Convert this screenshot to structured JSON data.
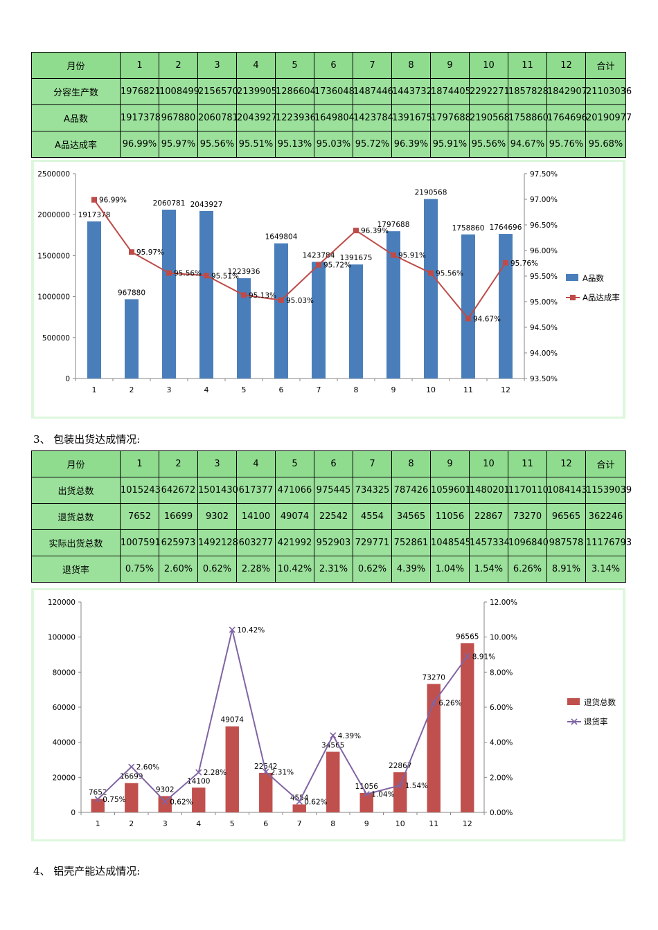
{
  "table1": {
    "header": [
      "月份",
      "1",
      "2",
      "3",
      "4",
      "5",
      "6",
      "7",
      "8",
      "9",
      "10",
      "11",
      "12",
      "合计"
    ],
    "rows": [
      [
        "分容生产数",
        "1976821",
        "1008499",
        "2156570",
        "2139905",
        "1286604",
        "1736048",
        "1487446",
        "1443732",
        "1874405",
        "2292271",
        "1857828",
        "1842907",
        "21103036"
      ],
      [
        "A品数",
        "1917378",
        "967880",
        "2060781",
        "2043927",
        "1223936",
        "1649804",
        "1423784",
        "1391675",
        "1797688",
        "2190568",
        "1758860",
        "1764696",
        "20190977"
      ],
      [
        "A品达成率",
        "96.99%",
        "95.97%",
        "95.56%",
        "95.51%",
        "95.13%",
        "95.03%",
        "95.72%",
        "96.39%",
        "95.91%",
        "95.56%",
        "94.67%",
        "95.76%",
        "95.68%"
      ]
    ]
  },
  "section3": "3、 包装出货达成情况:",
  "table2": {
    "header": [
      "月份",
      "1",
      "2",
      "3",
      "4",
      "5",
      "6",
      "7",
      "8",
      "9",
      "10",
      "11",
      "12",
      "合计"
    ],
    "rows": [
      [
        "出货总数",
        "1015243",
        "642672",
        "1501430",
        "617377",
        "471066",
        "975445",
        "734325",
        "787426",
        "1059601",
        "1480201",
        "1170110",
        "1084143",
        "11539039"
      ],
      [
        "退货总数",
        "7652",
        "16699",
        "9302",
        "14100",
        "49074",
        "22542",
        "4554",
        "34565",
        "11056",
        "22867",
        "73270",
        "96565",
        "362246"
      ],
      [
        "实际出货总数",
        "1007591",
        "625973",
        "1492128",
        "603277",
        "421992",
        "952903",
        "729771",
        "752861",
        "1048545",
        "1457334",
        "1096840",
        "987578",
        "11176793"
      ],
      [
        "退货率",
        "0.75%",
        "2.60%",
        "0.62%",
        "2.28%",
        "10.42%",
        "2.31%",
        "0.62%",
        "4.39%",
        "1.04%",
        "1.54%",
        "6.26%",
        "8.91%",
        "3.14%"
      ]
    ]
  },
  "section4": "4、 铝壳产能达成情况:",
  "chart_data": [
    {
      "type": "bar",
      "categories": [
        "1",
        "2",
        "3",
        "4",
        "5",
        "6",
        "7",
        "8",
        "9",
        "10",
        "11",
        "12"
      ],
      "series": [
        {
          "name": "A品数",
          "kind": "bar",
          "axis": "left",
          "color": "#4a7ebb",
          "values": [
            1917378,
            967880,
            2060781,
            2043927,
            1223936,
            1649804,
            1423784,
            1391675,
            1797688,
            2190568,
            1758860,
            1764696
          ],
          "labels": [
            "1917378",
            "967880",
            "2060781",
            "2043927",
            "1223936",
            "1649804",
            "1423784",
            "1391675",
            "1797688",
            "2190568",
            "1758860",
            "1764696"
          ]
        },
        {
          "name": "A品达成率",
          "kind": "line",
          "axis": "right",
          "color": "#be4b48",
          "marker": "square",
          "values": [
            96.99,
            95.97,
            95.56,
            95.51,
            95.13,
            95.03,
            95.72,
            96.39,
            95.91,
            95.56,
            94.67,
            95.76
          ],
          "labels": [
            "96.99%",
            "95.97%",
            "95.56%",
            "95.51%",
            "95.13%",
            "95.03%",
            "95.72%",
            "96.39%",
            "95.91%",
            "95.56%",
            "94.67%",
            "95.76%"
          ]
        }
      ],
      "ylim_left": [
        0,
        2500000
      ],
      "yticks_left": [
        "0",
        "500000",
        "1000000",
        "1500000",
        "2000000",
        "2500000"
      ],
      "ylim_right": [
        93.5,
        97.5
      ],
      "yticks_right": [
        "93.50%",
        "94.00%",
        "94.50%",
        "95.00%",
        "95.50%",
        "96.00%",
        "96.50%",
        "97.00%",
        "97.50%"
      ],
      "grid": false,
      "legend": "right"
    },
    {
      "type": "bar",
      "categories": [
        "1",
        "2",
        "3",
        "4",
        "5",
        "6",
        "7",
        "8",
        "9",
        "10",
        "11",
        "12"
      ],
      "series": [
        {
          "name": "退货总数",
          "kind": "bar",
          "axis": "left",
          "color": "#c0504d",
          "values": [
            7652,
            16699,
            9302,
            14100,
            49074,
            22542,
            4554,
            34565,
            11056,
            22867,
            73270,
            96565
          ],
          "labels": [
            "7652",
            "16699",
            "9302",
            "14100",
            "49074",
            "22542",
            "4554",
            "34565",
            "11056",
            "22867",
            "73270",
            "96565"
          ]
        },
        {
          "name": "退货率",
          "kind": "line",
          "axis": "right",
          "color": "#8064a2",
          "marker": "x",
          "values": [
            0.75,
            2.6,
            0.62,
            2.28,
            10.42,
            2.31,
            0.62,
            4.39,
            1.04,
            1.54,
            6.26,
            8.91
          ],
          "labels": [
            "0.75%",
            "2.60%",
            "0.62%",
            "2.28%",
            "10.42%",
            "2.31%",
            "0.62%",
            "4.39%",
            "1.04%",
            "1.54%",
            "6.26%",
            "8.91%"
          ]
        }
      ],
      "ylim_left": [
        0,
        120000
      ],
      "yticks_left": [
        "0",
        "20000",
        "40000",
        "60000",
        "80000",
        "100000",
        "120000"
      ],
      "ylim_right": [
        0,
        12
      ],
      "yticks_right": [
        "0.00%",
        "2.00%",
        "4.00%",
        "6.00%",
        "8.00%",
        "10.00%",
        "12.00%"
      ],
      "grid": false,
      "legend": "right"
    }
  ]
}
